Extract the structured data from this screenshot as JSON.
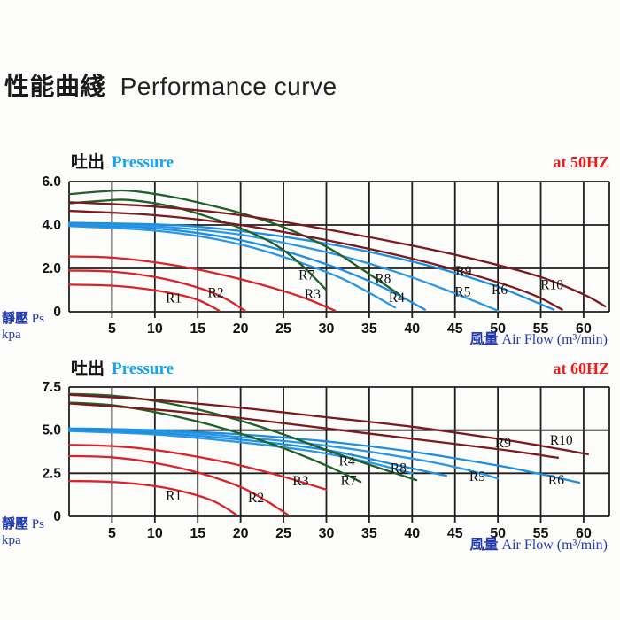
{
  "title": {
    "cjk": "性能曲綫",
    "en": "Performance curve"
  },
  "colors": {
    "curve_red": "#d8232a",
    "curve_maroon": "#7b191d",
    "curve_green": "#1f6128",
    "curve_blue": "#1e8fe0",
    "header_pressure_blue": "#18a3ee",
    "header_freq_red": "#e81c1c",
    "axis_label_blue": "#2239b0",
    "grid": "#1f1f1f"
  },
  "chart_data": [
    {
      "type": "line",
      "header": {
        "cjk": "吐出",
        "en": "Pressure",
        "freq": "at  50HZ"
      },
      "x_axis": {
        "ticks": [
          5,
          10,
          15,
          20,
          25,
          30,
          35,
          40,
          45,
          50,
          55,
          60
        ],
        "max": 63,
        "grid_step": 5,
        "label_cjk": "風量",
        "label_en": "Air Flow (m³/min)"
      },
      "y_axis": {
        "max": 6.0,
        "grid_lines": [
          0,
          2,
          4,
          6
        ],
        "tick_labels": [
          {
            "v": 6,
            "label": "6.0"
          },
          {
            "v": 4,
            "label": "4.0"
          },
          {
            "v": 2,
            "label": "2.0"
          },
          {
            "v": 0,
            "label": "0"
          }
        ],
        "label_cjk": "靜壓",
        "label_en": "Ps",
        "unit": "kpa"
      },
      "series": [
        {
          "name": "R1",
          "color": "#d8232a",
          "points": [
            [
              0,
              1.25
            ],
            [
              4,
              1.22
            ],
            [
              8,
              1.1
            ],
            [
              12,
              0.85
            ],
            [
              15,
              0.55
            ],
            [
              17.5,
              0.05
            ]
          ],
          "label": [
            12.2,
            0.42
          ]
        },
        {
          "name": "R2",
          "color": "#d8232a",
          "points": [
            [
              0,
              1.9
            ],
            [
              5,
              1.85
            ],
            [
              10,
              1.6
            ],
            [
              15,
              1.12
            ],
            [
              18,
              0.65
            ],
            [
              20.5,
              0.05
            ]
          ],
          "label": [
            17.1,
            0.68
          ]
        },
        {
          "name": "R3",
          "color": "#d8232a",
          "points": [
            [
              0,
              2.55
            ],
            [
              5,
              2.5
            ],
            [
              10,
              2.28
            ],
            [
              15,
              1.95
            ],
            [
              20,
              1.5
            ],
            [
              25,
              0.95
            ],
            [
              28,
              0.55
            ],
            [
              31,
              0.05
            ]
          ],
          "label": [
            28.4,
            0.62
          ]
        },
        {
          "name": "",
          "color": "#2a97e6",
          "points": [
            [
              0,
              3.95
            ],
            [
              8,
              3.8
            ],
            [
              14,
              3.55
            ],
            [
              20,
              3.1
            ],
            [
              26,
              2.4
            ],
            [
              32,
              1.5
            ],
            [
              38,
              0.2
            ]
          ],
          "label": null
        },
        {
          "name": "R4",
          "color": "#1e8fe0",
          "points": [
            [
              0,
              4.0
            ],
            [
              8,
              3.9
            ],
            [
              14,
              3.68
            ],
            [
              20,
              3.3
            ],
            [
              26,
              2.7
            ],
            [
              32,
              1.9
            ],
            [
              37,
              1.05
            ],
            [
              41.5,
              0.1
            ]
          ],
          "label": [
            38.2,
            0.45
          ]
        },
        {
          "name": "R5",
          "color": "#2a97e6",
          "points": [
            [
              0,
              4.05
            ],
            [
              8,
              3.98
            ],
            [
              14,
              3.82
            ],
            [
              20,
              3.55
            ],
            [
              26,
              3.1
            ],
            [
              32,
              2.55
            ],
            [
              38,
              1.85
            ],
            [
              44,
              1.0
            ],
            [
              50,
              0.05
            ]
          ],
          "label": [
            45.9,
            0.72
          ]
        },
        {
          "name": "R6",
          "color": "#1e8fe0",
          "points": [
            [
              0,
              4.1
            ],
            [
              8,
              4.05
            ],
            [
              14,
              3.95
            ],
            [
              20,
              3.72
            ],
            [
              26,
              3.4
            ],
            [
              32,
              3.0
            ],
            [
              38,
              2.5
            ],
            [
              44,
              1.9
            ],
            [
              50,
              1.15
            ],
            [
              56.5,
              0.1
            ]
          ],
          "label": [
            50.2,
            0.82
          ]
        },
        {
          "name": "R7",
          "color": "#1f6128",
          "points": [
            [
              0,
              5.0
            ],
            [
              4,
              5.12
            ],
            [
              7,
              5.15
            ],
            [
              12,
              4.85
            ],
            [
              16,
              4.4
            ],
            [
              20,
              3.85
            ],
            [
              24,
              3.1
            ],
            [
              27,
              2.2
            ],
            [
              30,
              1.0
            ]
          ],
          "label": [
            27.7,
            1.5
          ]
        },
        {
          "name": "R8",
          "color": "#1f6128",
          "points": [
            [
              0,
              5.42
            ],
            [
              4,
              5.55
            ],
            [
              7,
              5.58
            ],
            [
              12,
              5.3
            ],
            [
              16,
              4.95
            ],
            [
              20,
              4.55
            ],
            [
              25,
              3.9
            ],
            [
              30,
              3.0
            ],
            [
              34,
              2.0
            ],
            [
              38.5,
              0.8
            ]
          ],
          "label": [
            36.6,
            1.32
          ]
        },
        {
          "name": "R9",
          "color": "#7b191d",
          "points": [
            [
              0,
              4.65
            ],
            [
              10,
              4.45
            ],
            [
              20,
              4.0
            ],
            [
              30,
              3.3
            ],
            [
              40,
              2.45
            ],
            [
              48,
              1.6
            ],
            [
              54,
              0.8
            ],
            [
              57.5,
              0.1
            ]
          ],
          "label": [
            46.0,
            1.68
          ]
        },
        {
          "name": "R10",
          "color": "#7b191d",
          "points": [
            [
              0,
              5.05
            ],
            [
              10,
              4.85
            ],
            [
              20,
              4.45
            ],
            [
              30,
              3.8
            ],
            [
              40,
              3.05
            ],
            [
              48,
              2.35
            ],
            [
              55,
              1.6
            ],
            [
              60,
              0.8
            ],
            [
              62.5,
              0.25
            ]
          ],
          "label": [
            56.3,
            1.05
          ]
        }
      ]
    },
    {
      "type": "line",
      "header": {
        "cjk": "吐出",
        "en": "Pressure",
        "freq": "at  60HZ"
      },
      "x_axis": {
        "ticks": [
          5,
          10,
          15,
          20,
          25,
          30,
          35,
          40,
          45,
          50,
          55,
          60
        ],
        "max": 63,
        "grid_step": 5,
        "label_cjk": "風量",
        "label_en": "Air Flow (m³/min)"
      },
      "y_axis": {
        "max": 7.5,
        "grid_lines": [
          0,
          2.5,
          5,
          7.5
        ],
        "tick_labels": [
          {
            "v": 7.5,
            "label": "7.5"
          },
          {
            "v": 5,
            "label": "5.0"
          },
          {
            "v": 2.5,
            "label": "2.5"
          },
          {
            "v": 0,
            "label": "0"
          }
        ],
        "label_cjk": "靜壓",
        "label_en": "Ps",
        "unit": "kpa"
      },
      "series": [
        {
          "name": "R1",
          "color": "#d8232a",
          "points": [
            [
              0,
              2.05
            ],
            [
              5,
              2.0
            ],
            [
              10,
              1.75
            ],
            [
              14,
              1.35
            ],
            [
              17,
              0.85
            ],
            [
              19.5,
              0.1
            ]
          ],
          "label": [
            12.2,
            0.95
          ]
        },
        {
          "name": "R2",
          "color": "#d8232a",
          "points": [
            [
              0,
              3.5
            ],
            [
              5,
              3.42
            ],
            [
              10,
              3.1
            ],
            [
              15,
              2.55
            ],
            [
              20,
              1.7
            ],
            [
              23,
              0.9
            ],
            [
              25.5,
              0.1
            ]
          ],
          "label": [
            21.8,
            0.82
          ]
        },
        {
          "name": "R3",
          "color": "#d8232a",
          "points": [
            [
              0,
              4.15
            ],
            [
              5,
              4.08
            ],
            [
              10,
              3.85
            ],
            [
              15,
              3.45
            ],
            [
              20,
              2.95
            ],
            [
              25,
              2.3
            ],
            [
              30,
              1.55
            ]
          ],
          "label": [
            27.0,
            1.8
          ]
        },
        {
          "name": "",
          "color": "#2a97e6",
          "points": [
            [
              0,
              4.95
            ],
            [
              10,
              4.75
            ],
            [
              20,
              4.3
            ],
            [
              28,
              3.8
            ],
            [
              34,
              3.25
            ],
            [
              40,
              2.5
            ]
          ],
          "label": null
        },
        {
          "name": "R4",
          "color": "#1e8fe0",
          "points": [
            [
              0,
              5.0
            ],
            [
              10,
              4.85
            ],
            [
              20,
              4.45
            ],
            [
              30,
              3.85
            ],
            [
              38,
              3.0
            ],
            [
              44,
              2.35
            ]
          ],
          "label": [
            32.4,
            2.95
          ]
        },
        {
          "name": "R5",
          "color": "#2a97e6",
          "points": [
            [
              0,
              5.05
            ],
            [
              10,
              4.95
            ],
            [
              20,
              4.6
            ],
            [
              30,
              4.1
            ],
            [
              40,
              3.35
            ],
            [
              46,
              2.75
            ],
            [
              50,
              2.2
            ]
          ],
          "label": [
            47.6,
            2.05
          ]
        },
        {
          "name": "R6",
          "color": "#1e8fe0",
          "points": [
            [
              0,
              5.1
            ],
            [
              10,
              5.0
            ],
            [
              20,
              4.75
            ],
            [
              30,
              4.35
            ],
            [
              40,
              3.75
            ],
            [
              50,
              2.95
            ],
            [
              55,
              2.45
            ],
            [
              59.5,
              1.95
            ]
          ],
          "label": [
            56.8,
            1.85
          ]
        },
        {
          "name": "R7",
          "color": "#1f6128",
          "points": [
            [
              0,
              6.6
            ],
            [
              5,
              6.45
            ],
            [
              10,
              6.05
            ],
            [
              15,
              5.5
            ],
            [
              20,
              4.8
            ],
            [
              25,
              3.95
            ],
            [
              30,
              2.95
            ],
            [
              34,
              2.0
            ]
          ],
          "label": [
            32.6,
            1.82
          ]
        },
        {
          "name": "R8",
          "color": "#1f6128",
          "points": [
            [
              0,
              7.1
            ],
            [
              5,
              7.0
            ],
            [
              10,
              6.7
            ],
            [
              15,
              6.2
            ],
            [
              20,
              5.55
            ],
            [
              25,
              4.75
            ],
            [
              30,
              3.85
            ],
            [
              35,
              3.0
            ],
            [
              40.5,
              2.1
            ]
          ],
          "label": [
            38.4,
            2.55
          ]
        },
        {
          "name": "R9",
          "color": "#7b191d",
          "points": [
            [
              0,
              6.55
            ],
            [
              10,
              6.2
            ],
            [
              20,
              5.7
            ],
            [
              30,
              5.1
            ],
            [
              40,
              4.5
            ],
            [
              50,
              3.9
            ],
            [
              57,
              3.4
            ]
          ],
          "label": [
            50.6,
            4.0
          ]
        },
        {
          "name": "R10",
          "color": "#7b191d",
          "points": [
            [
              0,
              7.05
            ],
            [
              10,
              6.75
            ],
            [
              20,
              6.3
            ],
            [
              30,
              5.75
            ],
            [
              40,
              5.2
            ],
            [
              50,
              4.5
            ],
            [
              55,
              4.1
            ],
            [
              60.5,
              3.6
            ]
          ],
          "label": [
            57.4,
            4.15
          ]
        }
      ]
    }
  ]
}
